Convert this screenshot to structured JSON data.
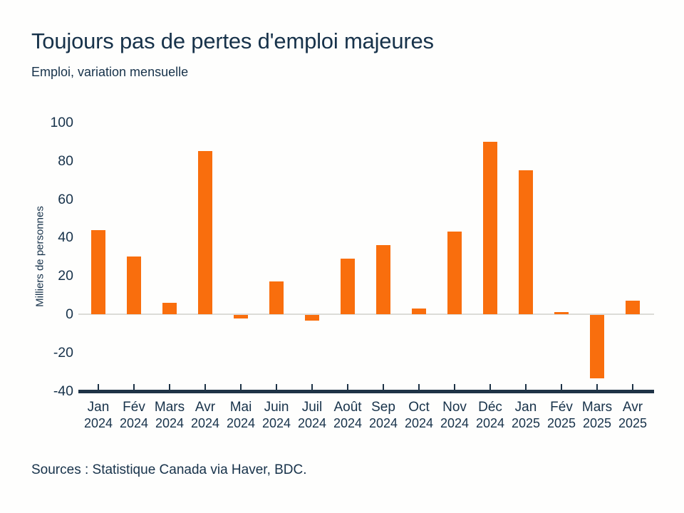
{
  "chart_data": {
    "type": "bar",
    "title": "Toujours pas de pertes d'emploi majeures",
    "subtitle": "Emploi, variation mensuelle",
    "ylabel": "Milliers de personnes",
    "source": "Sources : Statistique Canada via Haver, BDC.",
    "categories": [
      {
        "month": "Jan",
        "year": "2024"
      },
      {
        "month": "Fév",
        "year": "2024"
      },
      {
        "month": "Mars",
        "year": "2024"
      },
      {
        "month": "Avr",
        "year": "2024"
      },
      {
        "month": "Mai",
        "year": "2024"
      },
      {
        "month": "Juin",
        "year": "2024"
      },
      {
        "month": "Juil",
        "year": "2024"
      },
      {
        "month": "Août",
        "year": "2024"
      },
      {
        "month": "Sep",
        "year": "2024"
      },
      {
        "month": "Oct",
        "year": "2024"
      },
      {
        "month": "Nov",
        "year": "2024"
      },
      {
        "month": "Déc",
        "year": "2024"
      },
      {
        "month": "Jan",
        "year": "2025"
      },
      {
        "month": "Fév",
        "year": "2025"
      },
      {
        "month": "Mars",
        "year": "2025"
      },
      {
        "month": "Avr",
        "year": "2025"
      }
    ],
    "values": [
      44,
      30,
      6,
      85,
      -2,
      17,
      -3,
      29,
      36,
      3,
      43,
      90,
      75,
      1,
      -33,
      7
    ],
    "yticks": [
      100,
      80,
      60,
      40,
      20,
      0,
      -20,
      -40
    ],
    "ylim": [
      -40,
      100
    ],
    "grid": "zero-line-only",
    "legend": "none",
    "colors": {
      "bar": "#F96E0D",
      "text": "#17324A",
      "axis": "#1E3346",
      "zero_line": "#DCDCD8",
      "background": "#FEFEFD"
    }
  }
}
